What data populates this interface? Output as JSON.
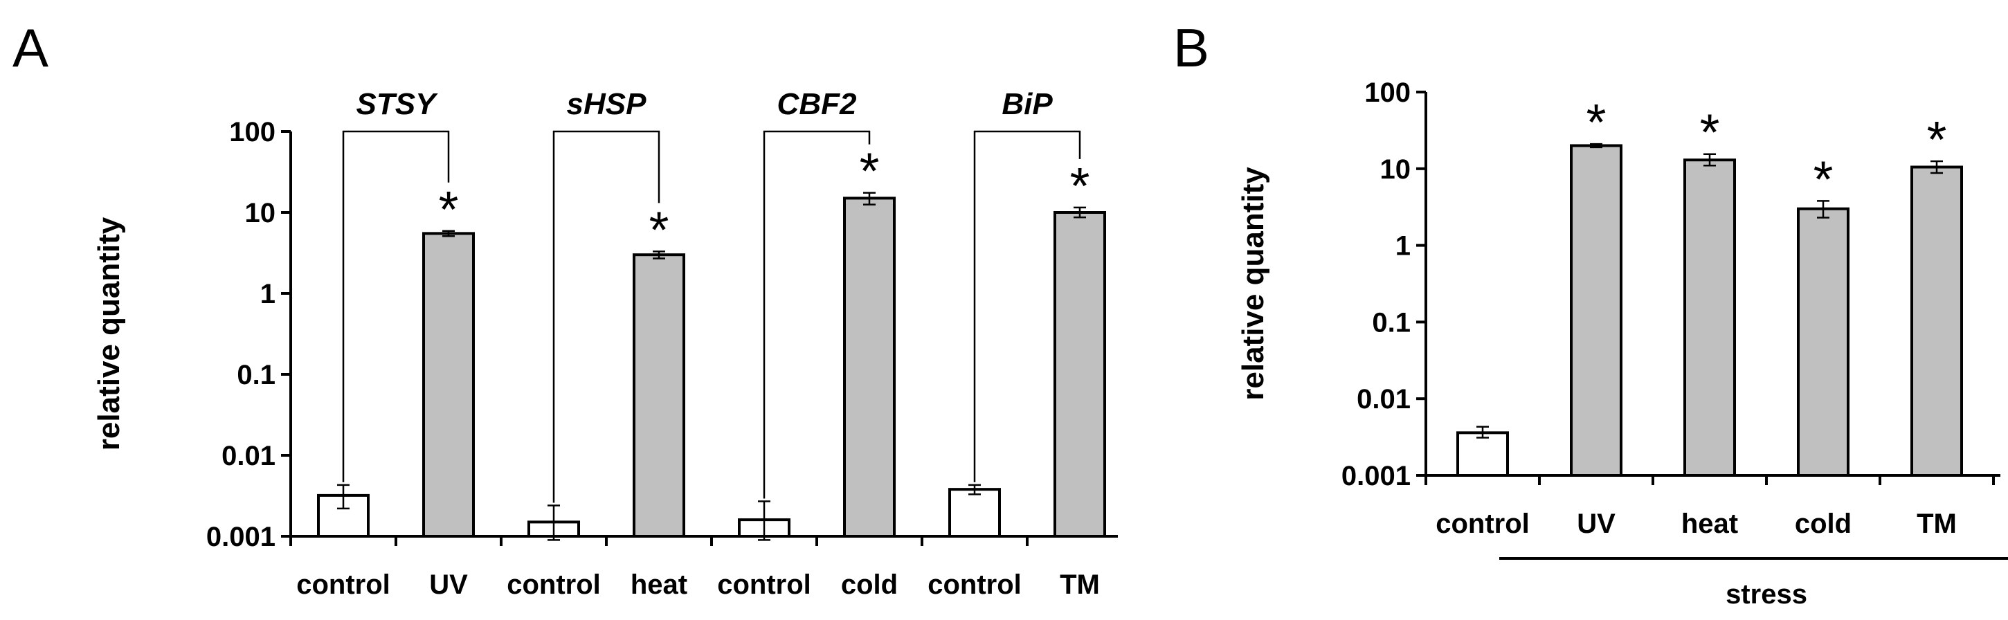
{
  "chart_data": [
    {
      "panel": "A",
      "type": "bar",
      "yscale": "log",
      "ylabel": "relative quantity",
      "ylim": [
        0.001,
        100
      ],
      "yticks": [
        "0.001",
        "0.01",
        "0.1",
        "1",
        "10",
        "100"
      ],
      "gridlines": false,
      "groups": [
        {
          "gene": "STSY",
          "bars": [
            {
              "label": "control",
              "value": 0.0032,
              "err_low": 0.0022,
              "err_high": 0.0043,
              "fill": "#ffffff",
              "significant": false
            },
            {
              "label": "UV",
              "value": 5.5,
              "err_low": 5.1,
              "err_high": 5.9,
              "fill": "#c0c0c0",
              "significant": true
            }
          ]
        },
        {
          "gene": "sHSP",
          "bars": [
            {
              "label": "control",
              "value": 0.0015,
              "err_low": 0.0009,
              "err_high": 0.0024,
              "fill": "#ffffff",
              "significant": false
            },
            {
              "label": "heat",
              "value": 3.0,
              "err_low": 2.7,
              "err_high": 3.3,
              "fill": "#c0c0c0",
              "significant": true
            }
          ]
        },
        {
          "gene": "CBF2",
          "bars": [
            {
              "label": "control",
              "value": 0.0016,
              "err_low": 0.0009,
              "err_high": 0.0027,
              "fill": "#ffffff",
              "significant": false
            },
            {
              "label": "cold",
              "value": 15,
              "err_low": 12.5,
              "err_high": 17.5,
              "fill": "#c0c0c0",
              "significant": true
            }
          ]
        },
        {
          "gene": "BiP",
          "bars": [
            {
              "label": "control",
              "value": 0.0038,
              "err_low": 0.0033,
              "err_high": 0.0043,
              "fill": "#ffffff",
              "significant": false
            },
            {
              "label": "TM",
              "value": 10,
              "err_low": 8.7,
              "err_high": 11.5,
              "fill": "#c0c0c0",
              "significant": true
            }
          ]
        }
      ],
      "annotation": "*"
    },
    {
      "panel": "B",
      "type": "bar",
      "yscale": "log",
      "ylabel": "relative quantity",
      "ylim": [
        0.001,
        100
      ],
      "yticks": [
        "0.001",
        "0.01",
        "0.1",
        "1",
        "10",
        "100"
      ],
      "gridlines": false,
      "bars": [
        {
          "label": "control",
          "value": 0.0036,
          "err_low": 0.0031,
          "err_high": 0.0043,
          "fill": "#ffffff",
          "significant": false
        },
        {
          "label": "UV",
          "value": 20,
          "err_low": 19,
          "err_high": 21,
          "fill": "#c0c0c0",
          "significant": true
        },
        {
          "label": "heat",
          "value": 13,
          "err_low": 11,
          "err_high": 15.5,
          "fill": "#c0c0c0",
          "significant": true
        },
        {
          "label": "cold",
          "value": 3.0,
          "err_low": 2.3,
          "err_high": 3.8,
          "fill": "#c0c0c0",
          "significant": true
        },
        {
          "label": "TM",
          "value": 10.5,
          "err_low": 8.8,
          "err_high": 12.5,
          "fill": "#c0c0c0",
          "significant": true
        }
      ],
      "group_label": "stress",
      "annotation": "*"
    }
  ]
}
